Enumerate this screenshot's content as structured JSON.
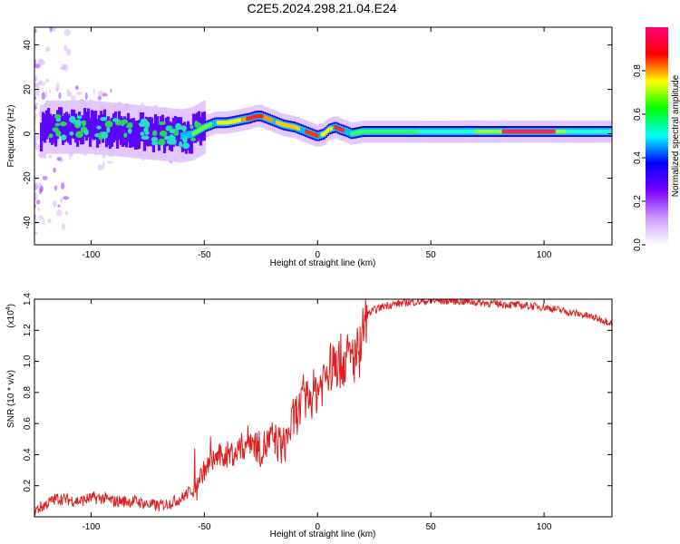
{
  "figure": {
    "title": "C2E5.2024.298.21.04.E24"
  },
  "chart_data": [
    {
      "type": "heatmap",
      "xlabel": "Height of straight line (km)",
      "ylabel": "Frequency (Hz)",
      "xlim": [
        -125,
        130
      ],
      "ylim": [
        -50,
        48
      ],
      "xticks": [
        -100,
        -50,
        0,
        50,
        100
      ],
      "xtick_labels": [
        "-100",
        "-50",
        "0",
        "50",
        "100"
      ],
      "yticks": [
        -40,
        -20,
        0,
        20,
        40
      ],
      "ytick_labels": [
        "-40",
        "-20",
        "0",
        "20",
        "40"
      ],
      "colorbar": {
        "label": "Normalized spectral amplitude",
        "range": [
          0,
          1
        ],
        "ticks": [
          0,
          0.2,
          0.4,
          0.6,
          0.8
        ],
        "tick_labels": [
          "0.0",
          "0.2",
          "0.4",
          "0.6",
          "0.8"
        ],
        "colors": [
          "#ffffff",
          "#cc99ff",
          "#7700ff",
          "#0000ff",
          "#00ffff",
          "#00ff00",
          "#ffff00",
          "#ff0000",
          "#ff0077"
        ]
      },
      "ridge": {
        "x": [
          -120,
          -110,
          -100,
          -90,
          -80,
          -70,
          -60,
          -55,
          -50,
          -45,
          -40,
          -35,
          -30,
          -27,
          -25,
          -20,
          -15,
          -10,
          -5,
          0,
          3,
          5,
          8,
          10,
          13,
          15,
          20,
          30,
          50,
          70,
          90,
          100,
          110,
          120,
          130
        ],
        "y": [
          3,
          3,
          3,
          2,
          1,
          0,
          -1,
          0,
          3,
          5,
          5,
          6,
          7,
          8,
          8,
          6,
          4,
          3,
          1,
          -1,
          0,
          2,
          3,
          2,
          1,
          0,
          1,
          1,
          1,
          1,
          1,
          1,
          1,
          1,
          1
        ]
      }
    },
    {
      "type": "line",
      "xlabel": "Height of straight line (km)",
      "ylabel": "SNR (10 * v/v)",
      "multiplier": "(x10",
      "multiplier_exp": "4",
      "multiplier_close": ")",
      "xlim": [
        -125,
        130
      ],
      "ylim": [
        0,
        1.4
      ],
      "xticks": [
        -100,
        -50,
        0,
        50,
        100
      ],
      "xtick_labels": [
        "-100",
        "-50",
        "0",
        "50",
        "100"
      ],
      "yticks": [
        0.2,
        0.4,
        0.6,
        0.8,
        1.0,
        1.2,
        1.4
      ],
      "ytick_labels": [
        "0.2",
        "0.4",
        "0.6",
        "0.8",
        "1.0",
        "1.2",
        "1.4"
      ],
      "series": [
        {
          "color": "#e02020",
          "x": [
            -125,
            -120,
            -115,
            -110,
            -105,
            -100,
            -95,
            -90,
            -85,
            -80,
            -75,
            -70,
            -65,
            -60,
            -55,
            -50,
            -45,
            -40,
            -35,
            -30,
            -25,
            -20,
            -15,
            -10,
            -5,
            0,
            5,
            10,
            15,
            18,
            20,
            22,
            25,
            30,
            40,
            50,
            60,
            70,
            80,
            90,
            100,
            110,
            120,
            125,
            130
          ],
          "y": [
            0.04,
            0.08,
            0.12,
            0.11,
            0.1,
            0.12,
            0.12,
            0.1,
            0.1,
            0.1,
            0.08,
            0.07,
            0.09,
            0.12,
            0.18,
            0.3,
            0.38,
            0.4,
            0.42,
            0.5,
            0.43,
            0.5,
            0.45,
            0.65,
            0.75,
            0.82,
            0.95,
            1.0,
            1.02,
            1.05,
            1.2,
            1.3,
            1.33,
            1.36,
            1.38,
            1.39,
            1.39,
            1.38,
            1.37,
            1.36,
            1.35,
            1.32,
            1.29,
            1.27,
            1.25
          ]
        }
      ]
    }
  ]
}
